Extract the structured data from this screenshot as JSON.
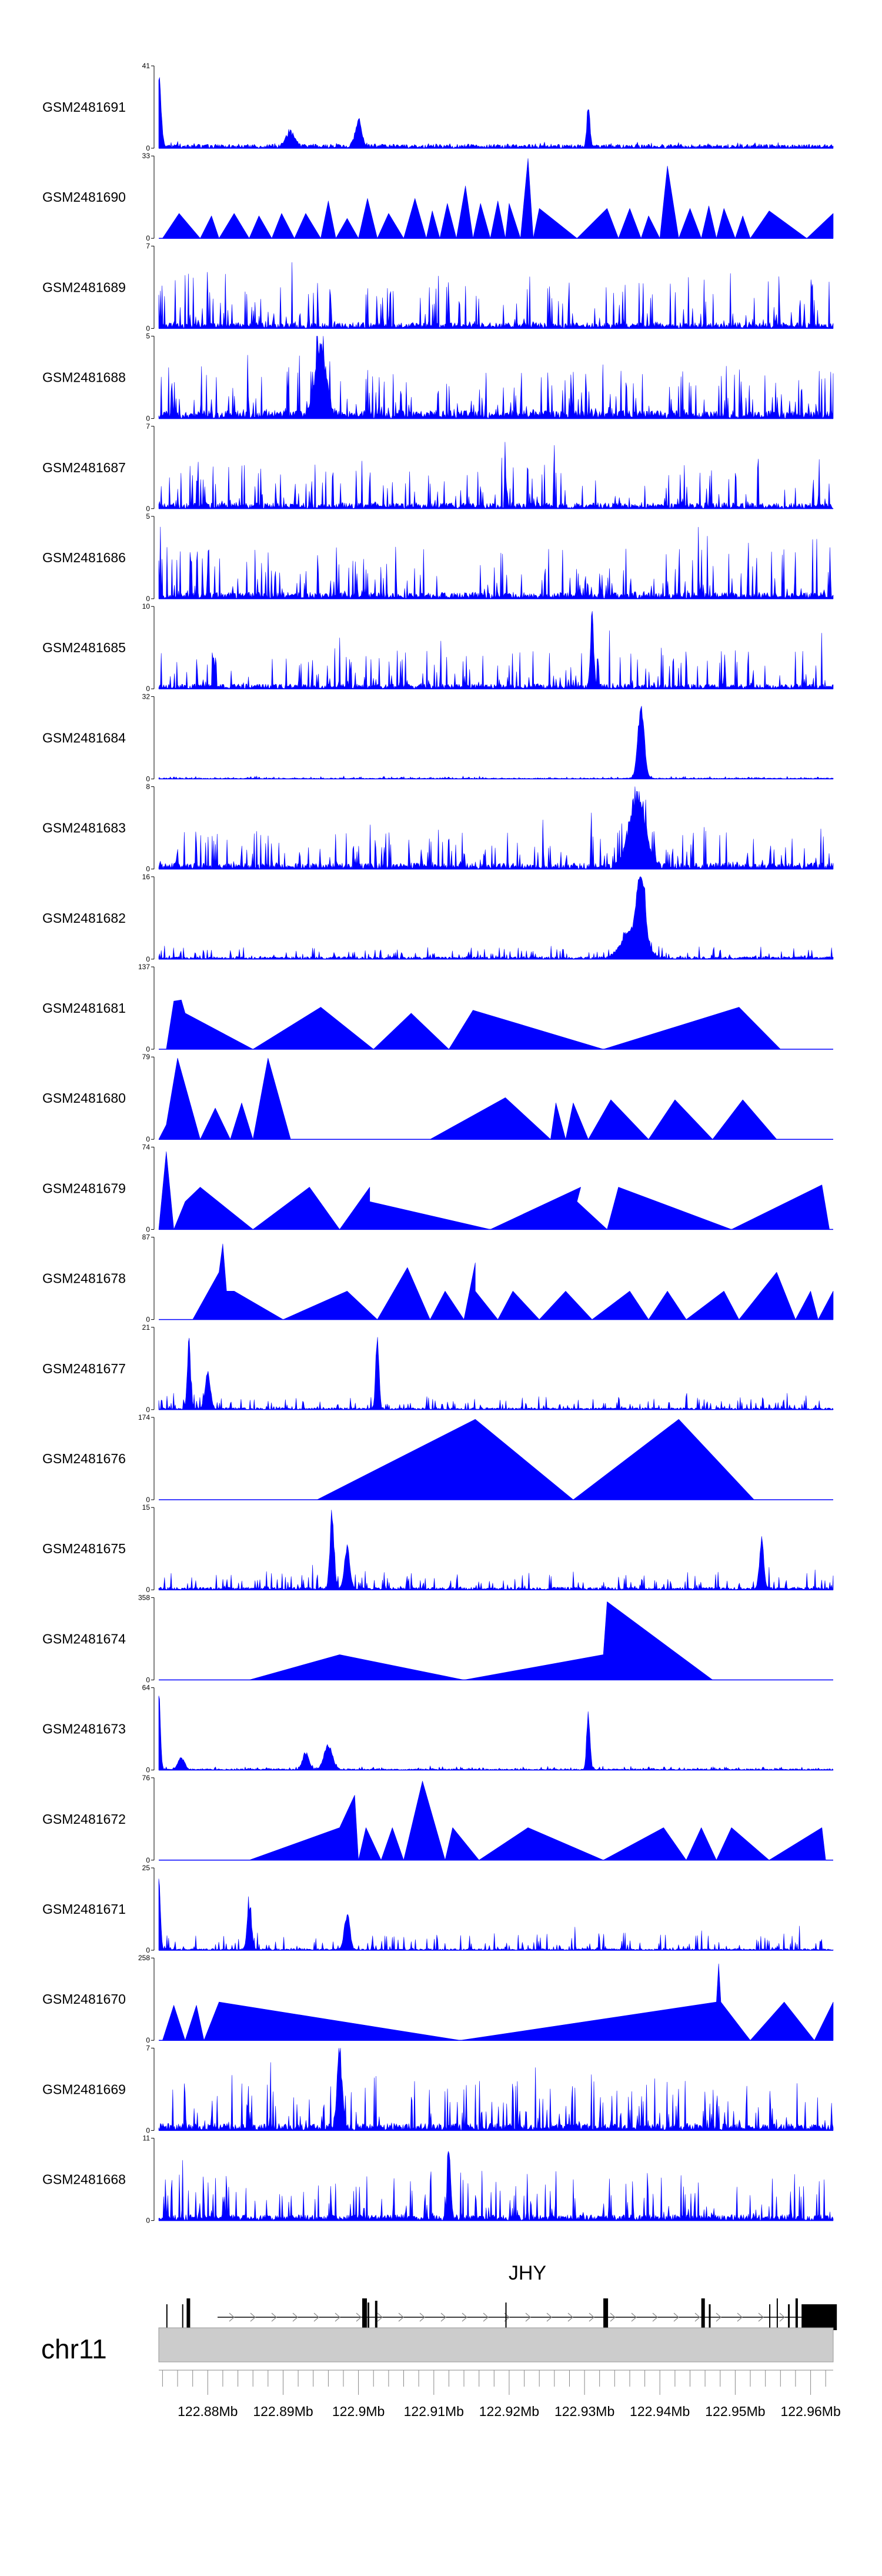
{
  "chart_data": {
    "type": "area",
    "title": "",
    "chromosome": "chr11",
    "gene": "JHY",
    "xlabel": "",
    "xlim_mb": [
      122.8735,
      122.963
    ],
    "x_ticks": [
      "122.88Mb",
      "122.89Mb",
      "122.9Mb",
      "122.91Mb",
      "122.92Mb",
      "122.93Mb",
      "122.94Mb",
      "122.95Mb",
      "122.96Mb"
    ],
    "x_tick_values_mb": [
      122.88,
      122.89,
      122.9,
      122.91,
      122.92,
      122.93,
      122.94,
      122.95,
      122.96
    ],
    "fill_color": "#0000ff",
    "gene_color": "#000000",
    "ideogram_color": "#cccccc",
    "tracks": [
      {
        "name": "GSM2481691",
        "ymax": 41,
        "ymin": 0,
        "style": "dense",
        "baseline": 2,
        "noise": 1.2,
        "peaks": [
          [
            122.8735,
            40,
            0.0004
          ],
          [
            122.9,
            14,
            0.0006
          ],
          [
            122.891,
            8,
            0.0008
          ],
          [
            122.9305,
            19,
            0.0003
          ]
        ]
      },
      {
        "name": "GSM2481690",
        "ymax": 33,
        "ymin": 0,
        "style": "sparse",
        "segments": [
          [
            122.874,
            0
          ],
          [
            122.8762,
            10
          ],
          [
            122.879,
            0
          ],
          [
            122.8805,
            9
          ],
          [
            122.8815,
            0
          ],
          [
            122.8835,
            10
          ],
          [
            122.8855,
            0
          ],
          [
            122.8868,
            9
          ],
          [
            122.8885,
            0
          ],
          [
            122.8898,
            10
          ],
          [
            122.8915,
            0
          ],
          [
            122.893,
            10
          ],
          [
            122.895,
            0
          ],
          [
            122.896,
            15
          ],
          [
            122.897,
            0
          ],
          [
            122.8985,
            8
          ],
          [
            122.9,
            0
          ],
          [
            122.9012,
            16
          ],
          [
            122.9025,
            0
          ],
          [
            122.904,
            10
          ],
          [
            122.906,
            0
          ],
          [
            122.9075,
            16
          ],
          [
            122.909,
            0
          ],
          [
            122.9098,
            11
          ],
          [
            122.9108,
            0
          ],
          [
            122.9118,
            14
          ],
          [
            122.913,
            0
          ],
          [
            122.9142,
            21
          ],
          [
            122.9152,
            0
          ],
          [
            122.9162,
            14
          ],
          [
            122.9175,
            0
          ],
          [
            122.9185,
            15
          ],
          [
            122.9195,
            0
          ],
          [
            122.92,
            14
          ],
          [
            122.9215,
            0
          ],
          [
            122.9225,
            32
          ],
          [
            122.9232,
            0
          ],
          [
            122.924,
            12
          ],
          [
            122.929,
            0
          ],
          [
            122.933,
            12
          ],
          [
            122.9345,
            0
          ],
          [
            122.936,
            12
          ],
          [
            122.9375,
            0
          ],
          [
            122.9385,
            9
          ],
          [
            122.94,
            0
          ],
          [
            122.941,
            29
          ],
          [
            122.9425,
            0
          ],
          [
            122.944,
            12
          ],
          [
            122.9455,
            0
          ],
          [
            122.9465,
            13
          ],
          [
            122.9475,
            0
          ],
          [
            122.9485,
            12
          ],
          [
            122.95,
            0
          ],
          [
            122.951,
            9
          ],
          [
            122.952,
            0
          ],
          [
            122.9545,
            11
          ],
          [
            122.9595,
            0
          ],
          [
            122.963,
            10
          ]
        ]
      },
      {
        "name": "GSM2481689",
        "ymax": 7,
        "ymin": 0,
        "style": "dense",
        "baseline": 0.5,
        "noise": 4.5,
        "peaks": []
      },
      {
        "name": "GSM2481688",
        "ymax": 5,
        "ymin": 0,
        "style": "dense",
        "baseline": 0.5,
        "noise": 2.8,
        "peaks": [
          [
            122.895,
            4.5,
            0.001
          ]
        ]
      },
      {
        "name": "GSM2481687",
        "ymax": 7,
        "ymin": 0,
        "style": "dense",
        "baseline": 0.5,
        "noise": 4.0,
        "peaks": []
      },
      {
        "name": "GSM2481686",
        "ymax": 5,
        "ymin": 0,
        "style": "dense",
        "baseline": 0.4,
        "noise": 3.0,
        "peaks": []
      },
      {
        "name": "GSM2481685",
        "ymax": 10,
        "ymin": 0,
        "style": "dense",
        "baseline": 0.6,
        "noise": 4.5,
        "peaks": [
          [
            122.931,
            9.5,
            0.0003
          ]
        ]
      },
      {
        "name": "GSM2481684",
        "ymax": 32,
        "ymin": 0,
        "style": "dense",
        "baseline": 0.4,
        "noise": 0.8,
        "peaks": [
          [
            122.9375,
            31,
            0.0006
          ]
        ]
      },
      {
        "name": "GSM2481683",
        "ymax": 8,
        "ymin": 0,
        "style": "dense",
        "baseline": 0.6,
        "noise": 3.5,
        "peaks": [
          [
            122.937,
            7.5,
            0.0015
          ]
        ]
      },
      {
        "name": "GSM2481682",
        "ymax": 16,
        "ymin": 0,
        "style": "dense",
        "baseline": 0.5,
        "noise": 2.0,
        "peaks": [
          [
            122.9375,
            15,
            0.0007
          ],
          [
            122.9365,
            6,
            0.002
          ]
        ]
      },
      {
        "name": "GSM2481681",
        "ymax": 137,
        "ymin": 0,
        "style": "sparse",
        "segments": [
          [
            122.8745,
            0
          ],
          [
            122.8755,
            80
          ],
          [
            122.8765,
            82
          ],
          [
            122.877,
            60
          ],
          [
            122.886,
            0
          ],
          [
            122.895,
            70
          ],
          [
            122.902,
            0
          ],
          [
            122.907,
            60
          ],
          [
            122.912,
            0
          ],
          [
            122.9152,
            65
          ],
          [
            122.9325,
            0
          ],
          [
            122.9505,
            70
          ],
          [
            122.956,
            0
          ]
        ]
      },
      {
        "name": "GSM2481680",
        "ymax": 79,
        "ymin": 0,
        "style": "sparse",
        "segments": [
          [
            122.8735,
            0
          ],
          [
            122.8745,
            14
          ],
          [
            122.876,
            78
          ],
          [
            122.879,
            0
          ],
          [
            122.881,
            30
          ],
          [
            122.883,
            0
          ],
          [
            122.8845,
            35
          ],
          [
            122.886,
            0
          ],
          [
            122.888,
            78
          ],
          [
            122.891,
            0
          ],
          [
            122.9025,
            0
          ],
          [
            122.9095,
            0
          ],
          [
            122.9195,
            40
          ],
          [
            122.9255,
            0
          ],
          [
            122.9262,
            35
          ],
          [
            122.9275,
            0
          ],
          [
            122.9285,
            35
          ],
          [
            122.9305,
            0
          ],
          [
            122.9335,
            38
          ],
          [
            122.9385,
            0
          ],
          [
            122.942,
            38
          ],
          [
            122.947,
            0
          ],
          [
            122.951,
            38
          ],
          [
            122.9555,
            0
          ]
        ]
      },
      {
        "name": "GSM2481679",
        "ymax": 74,
        "ymin": 0,
        "style": "sparse",
        "segments": [
          [
            122.8735,
            0
          ],
          [
            122.8745,
            70
          ],
          [
            122.8755,
            0
          ],
          [
            122.877,
            25
          ],
          [
            122.879,
            38
          ],
          [
            122.886,
            0
          ],
          [
            122.8935,
            38
          ],
          [
            122.8975,
            0
          ],
          [
            122.9015,
            38
          ],
          [
            122.9015,
            25
          ],
          [
            122.9175,
            0
          ],
          [
            122.9295,
            38
          ],
          [
            122.929,
            25
          ],
          [
            122.933,
            0
          ],
          [
            122.9345,
            38
          ],
          [
            122.9495,
            0
          ],
          [
            122.9615,
            40
          ],
          [
            122.9625,
            0
          ]
        ]
      },
      {
        "name": "GSM2481678",
        "ymax": 87,
        "ymin": 0,
        "style": "sparse",
        "segments": [
          [
            122.878,
            0
          ],
          [
            122.8815,
            50
          ],
          [
            122.882,
            80
          ],
          [
            122.8825,
            30
          ],
          [
            122.8835,
            30
          ],
          [
            122.89,
            0
          ],
          [
            122.8985,
            30
          ],
          [
            122.9025,
            0
          ],
          [
            122.9065,
            55
          ],
          [
            122.9095,
            0
          ],
          [
            122.9115,
            30
          ],
          [
            122.914,
            0
          ],
          [
            122.9155,
            60
          ],
          [
            122.9155,
            30
          ],
          [
            122.9185,
            0
          ],
          [
            122.9205,
            30
          ],
          [
            122.924,
            0
          ],
          [
            122.9275,
            30
          ],
          [
            122.931,
            0
          ],
          [
            122.936,
            30
          ],
          [
            122.9385,
            0
          ],
          [
            122.941,
            30
          ],
          [
            122.9435,
            0
          ],
          [
            122.9485,
            30
          ],
          [
            122.9505,
            0
          ],
          [
            122.9555,
            50
          ],
          [
            122.958,
            0
          ],
          [
            122.96,
            30
          ],
          [
            122.961,
            0
          ],
          [
            122.963,
            30
          ]
        ]
      },
      {
        "name": "GSM2481677",
        "ymax": 21,
        "ymin": 0,
        "style": "dense",
        "baseline": 0.5,
        "noise": 3.0,
        "peaks": [
          [
            122.8775,
            19,
            0.0003
          ],
          [
            122.9025,
            20,
            0.0003
          ],
          [
            122.88,
            10,
            0.0005
          ]
        ]
      },
      {
        "name": "GSM2481676",
        "ymax": 174,
        "ymin": 0,
        "style": "sparse",
        "segments": [
          [
            122.8945,
            0
          ],
          [
            122.9155,
            170
          ],
          [
            122.9285,
            0
          ],
          [
            122.9425,
            170
          ],
          [
            122.9525,
            0
          ]
        ]
      },
      {
        "name": "GSM2481675",
        "ymax": 15,
        "ymin": 0,
        "style": "dense",
        "baseline": 0.5,
        "noise": 3.0,
        "peaks": [
          [
            122.8965,
            14,
            0.0004
          ],
          [
            122.9535,
            10,
            0.0004
          ],
          [
            122.8985,
            8,
            0.0005
          ]
        ]
      },
      {
        "name": "GSM2481674",
        "ymax": 358,
        "ymin": 0,
        "style": "sparse",
        "segments": [
          [
            122.8855,
            0
          ],
          [
            122.8975,
            110
          ],
          [
            122.914,
            0
          ],
          [
            122.9325,
            110
          ],
          [
            122.933,
            340
          ],
          [
            122.947,
            0
          ]
        ]
      },
      {
        "name": "GSM2481673",
        "ymax": 64,
        "ymin": 0,
        "style": "dense",
        "baseline": 1,
        "noise": 2,
        "peaks": [
          [
            122.8735,
            62,
            0.0003
          ],
          [
            122.9305,
            50,
            0.0003
          ],
          [
            122.896,
            20,
            0.0008
          ],
          [
            122.893,
            14,
            0.0006
          ],
          [
            122.8765,
            10,
            0.0006
          ]
        ]
      },
      {
        "name": "GSM2481672",
        "ymax": 76,
        "ymin": 0,
        "style": "sparse",
        "segments": [
          [
            122.8855,
            0
          ],
          [
            122.8975,
            30
          ],
          [
            122.8995,
            60
          ],
          [
            122.9,
            0
          ],
          [
            122.901,
            30
          ],
          [
            122.903,
            0
          ],
          [
            122.9045,
            30
          ],
          [
            122.906,
            0
          ],
          [
            122.9085,
            73
          ],
          [
            122.9115,
            0
          ],
          [
            122.9125,
            30
          ],
          [
            122.916,
            0
          ],
          [
            122.9225,
            30
          ],
          [
            122.9325,
            0
          ],
          [
            122.9405,
            30
          ],
          [
            122.9435,
            0
          ],
          [
            122.9455,
            30
          ],
          [
            122.9475,
            0
          ],
          [
            122.9495,
            30
          ],
          [
            122.9545,
            0
          ],
          [
            122.9615,
            30
          ],
          [
            122.962,
            0
          ]
        ]
      },
      {
        "name": "GSM2481671",
        "ymax": 25,
        "ymin": 0,
        "style": "dense",
        "baseline": 0.5,
        "noise": 5,
        "peaks": [
          [
            122.8735,
            24,
            0.0003
          ],
          [
            122.8855,
            14,
            0.0004
          ],
          [
            122.8985,
            12,
            0.0005
          ]
        ]
      },
      {
        "name": "GSM2481670",
        "ymax": 258,
        "ymin": 0,
        "style": "sparse",
        "segments": [
          [
            122.874,
            0
          ],
          [
            122.8755,
            110
          ],
          [
            122.877,
            0
          ],
          [
            122.8785,
            110
          ],
          [
            122.8795,
            0
          ],
          [
            122.8815,
            120
          ],
          [
            122.9135,
            0
          ],
          [
            122.9475,
            120
          ],
          [
            122.9478,
            240
          ],
          [
            122.9481,
            120
          ],
          [
            122.952,
            0
          ],
          [
            122.9565,
            120
          ],
          [
            122.9605,
            0
          ],
          [
            122.963,
            120
          ]
        ]
      },
      {
        "name": "GSM2481669",
        "ymax": 7,
        "ymin": 0,
        "style": "dense",
        "baseline": 0.6,
        "noise": 4.0,
        "peaks": [
          [
            122.8975,
            6.5,
            0.0005
          ]
        ]
      },
      {
        "name": "GSM2481668",
        "ymax": 11,
        "ymin": 0,
        "style": "dense",
        "baseline": 0.8,
        "noise": 6.0,
        "peaks": [
          [
            122.912,
            10.5,
            0.0003
          ]
        ]
      }
    ]
  }
}
